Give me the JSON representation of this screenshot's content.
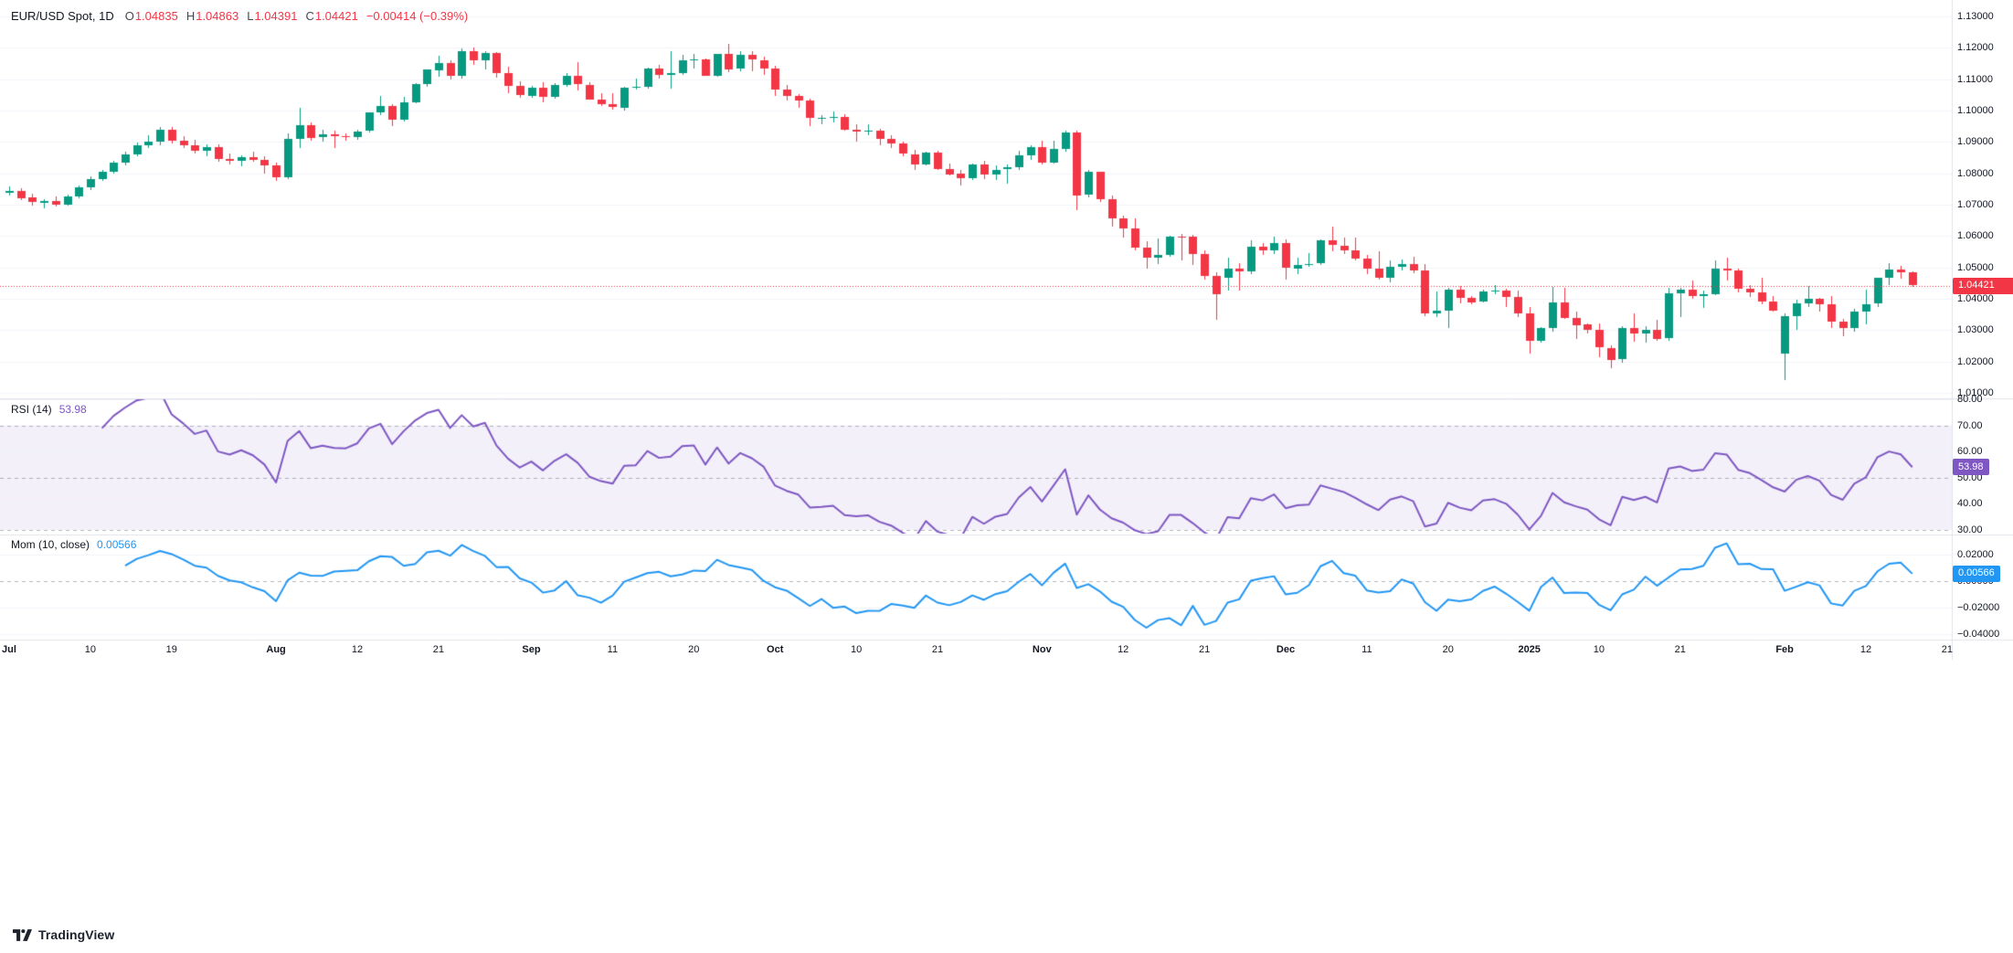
{
  "legend": {
    "symbol": "EUR/USD Spot, 1D",
    "ohlc": [
      {
        "k": "O",
        "v": "1.04835"
      },
      {
        "k": "H",
        "v": "1.04863"
      },
      {
        "k": "L",
        "v": "1.04391"
      },
      {
        "k": "C",
        "v": "1.04421"
      }
    ],
    "change": "−0.00414 (−0.39%)"
  },
  "footer": {
    "brand": "TradingView"
  },
  "colors": {
    "up": "#089981",
    "down": "#F23645",
    "rsi": "#7E57C2",
    "rsi_band_fill": "rgba(126,87,194,0.09)",
    "momentum": "#2196F3",
    "grid": "#F0F3FA",
    "separator": "#E0E3EB",
    "dashed": "rgba(120,123,134,0.55)",
    "axis_text": "#131722",
    "last_price": "#F23645"
  },
  "price_axis": {
    "last_price": 1.04421,
    "last_price_label": "1.04421",
    "levels": [
      {
        "v": 1.13,
        "label": "1.13000"
      },
      {
        "v": 1.12,
        "label": "1.12000"
      },
      {
        "v": 1.11,
        "label": "1.11000"
      },
      {
        "v": 1.1,
        "label": "1.10000"
      },
      {
        "v": 1.09,
        "label": "1.09000"
      },
      {
        "v": 1.08,
        "label": "1.08000"
      },
      {
        "v": 1.07,
        "label": "1.07000"
      },
      {
        "v": 1.06,
        "label": "1.06000"
      },
      {
        "v": 1.05,
        "label": "1.05000"
      },
      {
        "v": 1.04,
        "label": "1.04000"
      },
      {
        "v": 1.03,
        "label": "1.03000"
      },
      {
        "v": 1.02,
        "label": "1.02000"
      },
      {
        "v": 1.01,
        "label": "1.01000"
      }
    ]
  },
  "rsi_pane": {
    "title": "RSI (14)",
    "period": 14,
    "value": 53.98,
    "value_label": "53.98",
    "color": "#7E57C2",
    "band": [
      30,
      70
    ],
    "levels": [
      {
        "v": 80,
        "label": "80.00"
      },
      {
        "v": 70,
        "label": "70.00",
        "dashed": true
      },
      {
        "v": 60,
        "label": "60.00"
      },
      {
        "v": 50,
        "label": "50.00",
        "dashed": true
      },
      {
        "v": 40,
        "label": "40.00"
      },
      {
        "v": 30,
        "label": "30.00",
        "dashed": true
      }
    ]
  },
  "momentum_pane": {
    "title": "Mom (10, close)",
    "period": 10,
    "source": "close",
    "value": 0.00566,
    "value_label": "0.00566",
    "color": "#2196F3",
    "levels": [
      {
        "v": 0.02,
        "label": "0.02000"
      },
      {
        "v": 0,
        "label": "0.00000",
        "dashed": true
      },
      {
        "v": -0.02,
        "label": "−0.02000"
      },
      {
        "v": -0.04,
        "label": "−0.04000"
      }
    ]
  },
  "chart_data": {
    "type": "candlestick",
    "title": "EUR/USD Spot, 1D",
    "symbol": "EUR/USD Spot",
    "timeframe": "1D",
    "ylim": [
      1.01,
      1.13
    ],
    "up_color": "#089981",
    "down_color": "#F23645",
    "last_close": 1.04421,
    "x_ticks": [
      {
        "i": 0,
        "label": "Jul",
        "major": true
      },
      {
        "i": 7,
        "label": "10"
      },
      {
        "i": 14,
        "label": "19"
      },
      {
        "i": 23,
        "label": "Aug",
        "major": true
      },
      {
        "i": 30,
        "label": "12"
      },
      {
        "i": 37,
        "label": "21"
      },
      {
        "i": 45,
        "label": "Sep",
        "major": true
      },
      {
        "i": 52,
        "label": "11"
      },
      {
        "i": 59,
        "label": "20"
      },
      {
        "i": 66,
        "label": "Oct",
        "major": true
      },
      {
        "i": 73,
        "label": "10"
      },
      {
        "i": 80,
        "label": "21"
      },
      {
        "i": 89,
        "label": "Nov",
        "major": true
      },
      {
        "i": 96,
        "label": "12"
      },
      {
        "i": 103,
        "label": "21"
      },
      {
        "i": 110,
        "label": "Dec",
        "major": true
      },
      {
        "i": 117,
        "label": "11"
      },
      {
        "i": 124,
        "label": "20"
      },
      {
        "i": 131,
        "label": "2025",
        "major": true
      },
      {
        "i": 137,
        "label": "10"
      },
      {
        "i": 144,
        "label": "21"
      },
      {
        "i": 153,
        "label": "Feb",
        "major": true
      },
      {
        "i": 160,
        "label": "12"
      },
      {
        "i": 167,
        "label": "21"
      }
    ],
    "indicators": [
      {
        "type": "rsi",
        "period": 14,
        "overbought": 70,
        "oversold": 30,
        "midline": 50,
        "last_value": 53.98,
        "color": "#7E57C2"
      },
      {
        "type": "momentum",
        "period": 10,
        "source": "close",
        "last_value": 0.00566,
        "color": "#2196F3"
      }
    ],
    "candles": [
      [
        1.074,
        1.0758,
        1.0728,
        1.0745
      ],
      [
        1.0745,
        1.0752,
        1.0715,
        1.0722
      ],
      [
        1.0722,
        1.0734,
        1.0698,
        1.0706
      ],
      [
        1.0706,
        1.0718,
        1.0688,
        1.0712
      ],
      [
        1.0712,
        1.0726,
        1.0695,
        1.0701
      ],
      [
        1.0701,
        1.0732,
        1.0696,
        1.0727
      ],
      [
        1.0727,
        1.0762,
        1.072,
        1.0756
      ],
      [
        1.0756,
        1.0789,
        1.0748,
        1.0782
      ],
      [
        1.0782,
        1.0812,
        1.0776,
        1.0806
      ],
      [
        1.0806,
        1.0841,
        1.0798,
        1.0835
      ],
      [
        1.0835,
        1.0868,
        1.0826,
        1.0861
      ],
      [
        1.0861,
        1.0898,
        1.0854,
        1.089
      ],
      [
        1.089,
        1.0922,
        1.0881,
        1.0902
      ],
      [
        1.0902,
        1.0948,
        1.089,
        1.094
      ],
      [
        1.094,
        1.0947,
        1.0896,
        1.0905
      ],
      [
        1.0905,
        1.0917,
        1.0882,
        1.089
      ],
      [
        1.089,
        1.0906,
        1.0862,
        1.0872
      ],
      [
        1.0872,
        1.0891,
        1.0855,
        1.0884
      ],
      [
        1.0884,
        1.0893,
        1.0838,
        1.0846
      ],
      [
        1.0846,
        1.0862,
        1.0828,
        1.084
      ],
      [
        1.084,
        1.0857,
        1.0822,
        1.0852
      ],
      [
        1.0852,
        1.0868,
        1.0836,
        1.0843
      ],
      [
        1.0843,
        1.0853,
        1.08,
        1.0826
      ],
      [
        1.0826,
        1.0835,
        1.0777,
        1.0789
      ],
      [
        1.0789,
        1.0927,
        1.0781,
        1.0911
      ],
      [
        1.0911,
        1.1009,
        1.088,
        1.0954
      ],
      [
        1.0954,
        1.0962,
        1.0904,
        1.0913
      ],
      [
        1.0913,
        1.0938,
        1.0902,
        1.0923
      ],
      [
        1.0923,
        1.0935,
        1.0882,
        1.0918
      ],
      [
        1.0918,
        1.0927,
        1.0903,
        1.0917
      ],
      [
        1.0917,
        1.0938,
        1.0907,
        1.0934
      ],
      [
        1.0934,
        1.0995,
        1.0929,
        1.0993
      ],
      [
        1.0993,
        1.1047,
        1.0986,
        1.1014
      ],
      [
        1.1014,
        1.102,
        1.095,
        1.0971
      ],
      [
        1.0971,
        1.1044,
        1.0966,
        1.1027
      ],
      [
        1.1027,
        1.1087,
        1.1022,
        1.1084
      ],
      [
        1.1084,
        1.1132,
        1.1077,
        1.113
      ],
      [
        1.113,
        1.1174,
        1.1109,
        1.1152
      ],
      [
        1.1152,
        1.116,
        1.1098,
        1.111
      ],
      [
        1.111,
        1.1199,
        1.1102,
        1.119
      ],
      [
        1.119,
        1.1201,
        1.1147,
        1.1161
      ],
      [
        1.1161,
        1.119,
        1.1132,
        1.1183
      ],
      [
        1.1183,
        1.1186,
        1.1104,
        1.112
      ],
      [
        1.112,
        1.1139,
        1.1055,
        1.1078
      ],
      [
        1.1078,
        1.1094,
        1.1042,
        1.1048
      ],
      [
        1.1048,
        1.1078,
        1.1042,
        1.1073
      ],
      [
        1.1073,
        1.109,
        1.1026,
        1.1043
      ],
      [
        1.1043,
        1.1086,
        1.1038,
        1.1082
      ],
      [
        1.1082,
        1.1119,
        1.1075,
        1.111
      ],
      [
        1.111,
        1.1155,
        1.1065,
        1.1083
      ],
      [
        1.1083,
        1.1091,
        1.1034,
        1.1036
      ],
      [
        1.1036,
        1.1055,
        1.1015,
        1.102
      ],
      [
        1.102,
        1.1056,
        1.1002,
        1.1011
      ],
      [
        1.1011,
        1.1075,
        1.1001,
        1.1074
      ],
      [
        1.1074,
        1.1102,
        1.1068,
        1.1076
      ],
      [
        1.1076,
        1.1138,
        1.1071,
        1.1133
      ],
      [
        1.1133,
        1.1146,
        1.1103,
        1.1113
      ],
      [
        1.1113,
        1.1189,
        1.1069,
        1.1118
      ],
      [
        1.1118,
        1.1179,
        1.1113,
        1.116
      ],
      [
        1.116,
        1.1181,
        1.1133,
        1.1163
      ],
      [
        1.1163,
        1.1167,
        1.111,
        1.1112
      ],
      [
        1.1112,
        1.1181,
        1.1108,
        1.1181
      ],
      [
        1.1181,
        1.1214,
        1.1123,
        1.1132
      ],
      [
        1.1132,
        1.119,
        1.1125,
        1.1177
      ],
      [
        1.1177,
        1.1188,
        1.1124,
        1.1161
      ],
      [
        1.1161,
        1.1171,
        1.1113,
        1.1135
      ],
      [
        1.1135,
        1.1143,
        1.1046,
        1.1067
      ],
      [
        1.1067,
        1.1082,
        1.1032,
        1.1046
      ],
      [
        1.1046,
        1.1052,
        1.1008,
        1.1031
      ],
      [
        1.1031,
        1.1038,
        1.0951,
        1.0975
      ],
      [
        1.0975,
        1.0985,
        1.0955,
        1.0977
      ],
      [
        1.0977,
        1.0996,
        1.0962,
        1.098
      ],
      [
        1.098,
        1.0987,
        1.0936,
        1.094
      ],
      [
        1.094,
        1.0955,
        1.09,
        1.0935
      ],
      [
        1.0935,
        1.0955,
        1.092,
        1.0937
      ],
      [
        1.0937,
        1.0941,
        1.0888,
        1.091
      ],
      [
        1.091,
        1.092,
        1.0882,
        1.0894
      ],
      [
        1.0894,
        1.0901,
        1.0853,
        1.0861
      ],
      [
        1.0861,
        1.0874,
        1.0811,
        1.0829
      ],
      [
        1.0829,
        1.087,
        1.0826,
        1.0866
      ],
      [
        1.0866,
        1.0872,
        1.0811,
        1.0815
      ],
      [
        1.0815,
        1.083,
        1.0792,
        1.0798
      ],
      [
        1.0798,
        1.0812,
        1.0761,
        1.0782
      ],
      [
        1.0782,
        1.0832,
        1.0778,
        1.0827
      ],
      [
        1.0827,
        1.0839,
        1.0782,
        1.0796
      ],
      [
        1.0796,
        1.0826,
        1.078,
        1.0812
      ],
      [
        1.0812,
        1.0827,
        1.0768,
        1.0818
      ],
      [
        1.0818,
        1.0871,
        1.0812,
        1.0856
      ],
      [
        1.0856,
        1.0888,
        1.0844,
        1.0883
      ],
      [
        1.0883,
        1.0905,
        1.0828,
        1.0834
      ],
      [
        1.0834,
        1.0905,
        1.0832,
        1.0878
      ],
      [
        1.0878,
        1.0937,
        1.0868,
        1.093
      ],
      [
        1.093,
        1.0937,
        1.0683,
        1.073
      ],
      [
        1.073,
        1.0812,
        1.0722,
        1.0804
      ],
      [
        1.0804,
        1.0806,
        1.0709,
        1.0718
      ],
      [
        1.0718,
        1.0728,
        1.0629,
        1.0657
      ],
      [
        1.0657,
        1.0665,
        1.0594,
        1.0624
      ],
      [
        1.0624,
        1.0655,
        1.0555,
        1.0563
      ],
      [
        1.0563,
        1.0583,
        1.0496,
        1.0531
      ],
      [
        1.0531,
        1.0592,
        1.051,
        1.054
      ],
      [
        1.054,
        1.0602,
        1.0535,
        1.0598
      ],
      [
        1.0598,
        1.0607,
        1.0521,
        1.0597
      ],
      [
        1.0597,
        1.0604,
        1.0507,
        1.0543
      ],
      [
        1.0543,
        1.0555,
        1.0461,
        1.0474
      ],
      [
        1.0474,
        1.0484,
        1.0333,
        1.0417
      ],
      [
        1.0466,
        1.053,
        1.0425,
        1.0495
      ],
      [
        1.0495,
        1.0513,
        1.0425,
        1.0487
      ],
      [
        1.0487,
        1.0587,
        1.0478,
        1.0566
      ],
      [
        1.0566,
        1.0578,
        1.0539,
        1.0553
      ],
      [
        1.0553,
        1.0598,
        1.0542,
        1.0577
      ],
      [
        1.0577,
        1.0588,
        1.0461,
        1.0498
      ],
      [
        1.0498,
        1.0532,
        1.048,
        1.0509
      ],
      [
        1.0509,
        1.0545,
        1.0501,
        1.0512
      ],
      [
        1.0512,
        1.059,
        1.0508,
        1.0586
      ],
      [
        1.0586,
        1.0629,
        1.0552,
        1.057
      ],
      [
        1.057,
        1.0594,
        1.0543,
        1.0555
      ],
      [
        1.0555,
        1.0596,
        1.0522,
        1.0528
      ],
      [
        1.0528,
        1.0539,
        1.048,
        1.0496
      ],
      [
        1.0496,
        1.0552,
        1.0462,
        1.0467
      ],
      [
        1.0467,
        1.0522,
        1.0453,
        1.0501
      ],
      [
        1.0501,
        1.0525,
        1.0489,
        1.0511
      ],
      [
        1.0511,
        1.0535,
        1.0481,
        1.049
      ],
      [
        1.049,
        1.0512,
        1.0344,
        1.0353
      ],
      [
        1.0353,
        1.0422,
        1.0343,
        1.0362
      ],
      [
        1.0362,
        1.0436,
        1.0308,
        1.043
      ],
      [
        1.043,
        1.044,
        1.0385,
        1.0404
      ],
      [
        1.0404,
        1.041,
        1.0383,
        1.039
      ],
      [
        1.039,
        1.0428,
        1.0388,
        1.0422
      ],
      [
        1.0422,
        1.0445,
        1.0415,
        1.0426
      ],
      [
        1.0426,
        1.0431,
        1.0375,
        1.0406
      ],
      [
        1.0406,
        1.0425,
        1.0343,
        1.0354
      ],
      [
        1.0354,
        1.0374,
        1.0226,
        1.0267
      ],
      [
        1.0267,
        1.031,
        1.0261,
        1.0308
      ],
      [
        1.0308,
        1.0437,
        1.0294,
        1.0389
      ],
      [
        1.0389,
        1.0435,
        1.0336,
        1.034
      ],
      [
        1.034,
        1.0358,
        1.0273,
        1.0318
      ],
      [
        1.0318,
        1.0321,
        1.029,
        1.03
      ],
      [
        1.03,
        1.0322,
        1.0213,
        1.0244
      ],
      [
        1.0244,
        1.025,
        1.0178,
        1.0206
      ],
      [
        1.0206,
        1.0312,
        1.0196,
        1.0306
      ],
      [
        1.0306,
        1.0354,
        1.0262,
        1.0289
      ],
      [
        1.0289,
        1.0313,
        1.026,
        1.0301
      ],
      [
        1.0301,
        1.0332,
        1.0267,
        1.0273
      ],
      [
        1.0273,
        1.0434,
        1.0266,
        1.0417
      ],
      [
        1.0417,
        1.0434,
        1.0341,
        1.0428
      ],
      [
        1.0428,
        1.0457,
        1.0399,
        1.0409
      ],
      [
        1.0409,
        1.0425,
        1.0371,
        1.0415
      ],
      [
        1.0415,
        1.0521,
        1.0412,
        1.0496
      ],
      [
        1.0496,
        1.0532,
        1.0459,
        1.0491
      ],
      [
        1.0491,
        1.0495,
        1.0421,
        1.0433
      ],
      [
        1.0433,
        1.0443,
        1.0406,
        1.042
      ],
      [
        1.042,
        1.0467,
        1.0383,
        1.0392
      ],
      [
        1.0392,
        1.041,
        1.036,
        1.0362
      ],
      [
        1.0224,
        1.0352,
        1.0141,
        1.0344
      ],
      [
        1.0344,
        1.0398,
        1.0302,
        1.0386
      ],
      [
        1.0386,
        1.0442,
        1.0375,
        1.04
      ],
      [
        1.04,
        1.0404,
        1.0359,
        1.0383
      ],
      [
        1.0383,
        1.0408,
        1.0306,
        1.0328
      ],
      [
        1.0328,
        1.0336,
        1.028,
        1.0307
      ],
      [
        1.0307,
        1.0368,
        1.0294,
        1.036
      ],
      [
        1.036,
        1.0428,
        1.0317,
        1.0383
      ],
      [
        1.0383,
        1.0468,
        1.0375,
        1.0466
      ],
      [
        1.0466,
        1.0514,
        1.0444,
        1.0493
      ],
      [
        1.0493,
        1.0504,
        1.0465,
        1.0484
      ],
      [
        1.04835,
        1.04863,
        1.04391,
        1.04421
      ]
    ]
  }
}
